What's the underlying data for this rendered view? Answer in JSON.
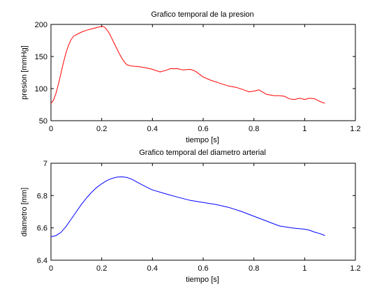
{
  "chart_data": [
    {
      "type": "line",
      "title": "Grafico temporal de la presion",
      "xlabel": "tiempo [s]",
      "ylabel": "presion [mmHg]",
      "xlim": [
        0,
        1.2
      ],
      "ylim": [
        50,
        200
      ],
      "xticks": [
        0,
        0.2,
        0.4,
        0.6,
        0.8,
        1,
        1.2
      ],
      "xtick_labels": [
        "0",
        "0.2",
        "0.4",
        "0.6",
        "0.8",
        "1",
        "1.2"
      ],
      "yticks": [
        50,
        100,
        150,
        200
      ],
      "ytick_labels": [
        "50",
        "100",
        "150",
        "200"
      ],
      "grid": false,
      "series": [
        {
          "color": "#ff0000",
          "x": [
            0,
            0.01,
            0.02,
            0.03,
            0.04,
            0.05,
            0.06,
            0.07,
            0.08,
            0.09,
            0.1,
            0.12,
            0.14,
            0.16,
            0.18,
            0.2,
            0.21,
            0.22,
            0.23,
            0.24,
            0.25,
            0.26,
            0.27,
            0.28,
            0.29,
            0.3,
            0.32,
            0.35,
            0.38,
            0.4,
            0.43,
            0.45,
            0.47,
            0.5,
            0.52,
            0.55,
            0.57,
            0.6,
            0.63,
            0.66,
            0.7,
            0.73,
            0.76,
            0.78,
            0.8,
            0.82,
            0.85,
            0.88,
            0.9,
            0.92,
            0.94,
            0.96,
            0.98,
            1.0,
            1.02,
            1.04,
            1.06,
            1.08
          ],
          "y": [
            77,
            82,
            93,
            108,
            125,
            142,
            157,
            168,
            177,
            182,
            184,
            188,
            191,
            193,
            195,
            197,
            196,
            192,
            186,
            178,
            170,
            162,
            154,
            147,
            141,
            137,
            135,
            134,
            132,
            130,
            126,
            128,
            131,
            131,
            129,
            130,
            127,
            118,
            113,
            109,
            104,
            102,
            98,
            95,
            96,
            98,
            91,
            89,
            89,
            88,
            84,
            83,
            85,
            83,
            85,
            84,
            80,
            77
          ]
        }
      ]
    },
    {
      "type": "line",
      "title": "Grafico temporal del diametro arterial",
      "xlabel": "tiempo [s]",
      "ylabel": "diametro [mm]",
      "xlim": [
        0,
        1.2
      ],
      "ylim": [
        6.4,
        7
      ],
      "xticks": [
        0,
        0.2,
        0.4,
        0.6,
        0.8,
        1,
        1.2
      ],
      "xtick_labels": [
        "0",
        "0.2",
        "0.4",
        "0.6",
        "0.8",
        "1",
        "1.2"
      ],
      "yticks": [
        6.4,
        6.6,
        6.8,
        7
      ],
      "ytick_labels": [
        "6.4",
        "6.6",
        "6.8",
        "7"
      ],
      "grid": false,
      "series": [
        {
          "color": "#0000ff",
          "x": [
            0,
            0.02,
            0.04,
            0.06,
            0.08,
            0.1,
            0.12,
            0.14,
            0.16,
            0.18,
            0.2,
            0.22,
            0.24,
            0.26,
            0.28,
            0.3,
            0.32,
            0.35,
            0.38,
            0.4,
            0.45,
            0.5,
            0.55,
            0.6,
            0.65,
            0.7,
            0.75,
            0.8,
            0.85,
            0.9,
            0.95,
            1.0,
            1.02,
            1.04,
            1.06,
            1.08
          ],
          "y": [
            6.545,
            6.553,
            6.573,
            6.61,
            6.655,
            6.7,
            6.745,
            6.785,
            6.82,
            6.85,
            6.873,
            6.893,
            6.906,
            6.914,
            6.916,
            6.912,
            6.9,
            6.874,
            6.85,
            6.835,
            6.812,
            6.79,
            6.77,
            6.757,
            6.745,
            6.727,
            6.702,
            6.672,
            6.642,
            6.612,
            6.6,
            6.592,
            6.585,
            6.573,
            6.565,
            6.553
          ]
        }
      ]
    }
  ]
}
